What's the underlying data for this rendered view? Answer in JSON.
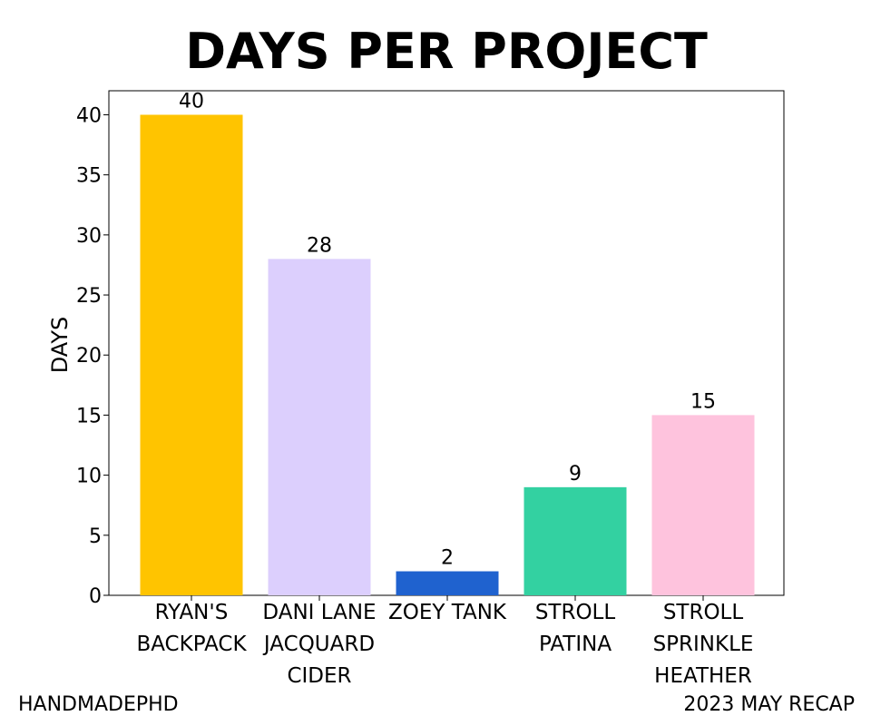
{
  "chart_data": {
    "type": "bar",
    "title": "DAYS PER PROJECT",
    "xlabel": "",
    "ylabel": "DAYS",
    "ylim": [
      0,
      42
    ],
    "yticks": [
      0,
      5,
      10,
      15,
      20,
      25,
      30,
      35,
      40
    ],
    "categories": [
      [
        "RYAN'S",
        "BACKPACK"
      ],
      [
        "DANI LANE",
        "JACQUARD",
        "CIDER"
      ],
      [
        "ZOEY TANK"
      ],
      [
        "STROLL",
        "PATINA"
      ],
      [
        "STROLL",
        "SPRINKLE",
        "HEATHER"
      ]
    ],
    "values": [
      40,
      28,
      2,
      9,
      15
    ],
    "colors": [
      "#ffc400",
      "#dccffd",
      "#1f62cf",
      "#33d1a1",
      "#fec3dd"
    ],
    "data_labels": [
      "40",
      "28",
      "2",
      "9",
      "15"
    ]
  },
  "footer": {
    "left": "HANDMADEPHD",
    "right": "2023 MAY RECAP"
  }
}
